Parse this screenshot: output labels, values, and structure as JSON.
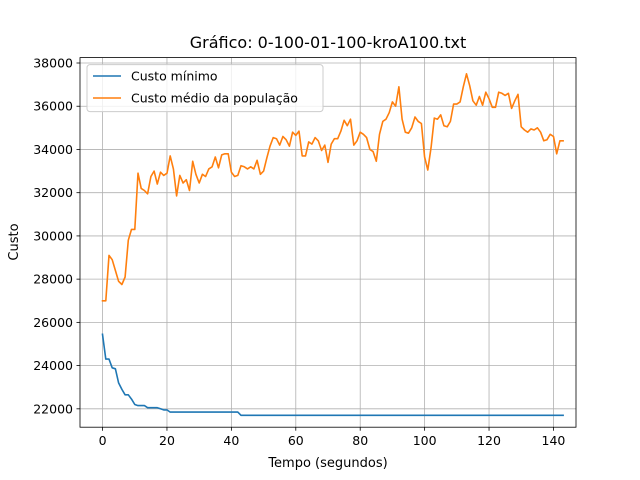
{
  "chart_data": {
    "type": "line",
    "title": "Gráfico: 0-100-01-100-kroA100.txt",
    "xlabel": "Tempo (segundos)",
    "ylabel": "Custo",
    "xlim": [
      -7,
      147
    ],
    "ylim": [
      21150,
      38250
    ],
    "xticks": [
      0,
      20,
      40,
      60,
      80,
      100,
      120,
      140
    ],
    "yticks": [
      22000,
      24000,
      26000,
      28000,
      30000,
      32000,
      34000,
      36000,
      38000
    ],
    "grid": true,
    "legend": "upper-left",
    "series": [
      {
        "name": "Custo mínimo",
        "color": "#1f77b4",
        "x": [
          0,
          1,
          2,
          3,
          4,
          5,
          6,
          7,
          8,
          9,
          10,
          11,
          12,
          13,
          14,
          15,
          16,
          17,
          18,
          19,
          20,
          21,
          22,
          30,
          40,
          42,
          43,
          60,
          80,
          100,
          120,
          143
        ],
        "y": [
          25450,
          24300,
          24300,
          23900,
          23850,
          23200,
          22900,
          22650,
          22650,
          22450,
          22200,
          22150,
          22150,
          22150,
          22050,
          22050,
          22050,
          22050,
          22000,
          21950,
          21950,
          21850,
          21850,
          21850,
          21850,
          21850,
          21700,
          21700,
          21700,
          21700,
          21700,
          21700
        ]
      },
      {
        "name": "Custo médio da população",
        "color": "#ff7f0e",
        "x": [
          0,
          1,
          2,
          3,
          4,
          5,
          6,
          7,
          8,
          9,
          10,
          11,
          12,
          13,
          14,
          15,
          16,
          17,
          18,
          19,
          20,
          21,
          22,
          23,
          24,
          25,
          26,
          27,
          28,
          29,
          30,
          31,
          32,
          33,
          34,
          35,
          36,
          37,
          38,
          39,
          40,
          41,
          42,
          43,
          44,
          45,
          46,
          47,
          48,
          49,
          50,
          51,
          52,
          53,
          54,
          55,
          56,
          57,
          58,
          59,
          60,
          61,
          62,
          63,
          64,
          65,
          66,
          67,
          68,
          69,
          70,
          71,
          72,
          73,
          74,
          75,
          76,
          77,
          78,
          79,
          80,
          81,
          82,
          83,
          84,
          85,
          86,
          87,
          88,
          89,
          90,
          91,
          92,
          93,
          94,
          95,
          96,
          97,
          98,
          99,
          100,
          101,
          102,
          103,
          104,
          105,
          106,
          107,
          108,
          109,
          110,
          111,
          112,
          113,
          114,
          115,
          116,
          117,
          118,
          119,
          120,
          121,
          122,
          123,
          124,
          125,
          126,
          127,
          128,
          129,
          130,
          131,
          132,
          133,
          134,
          135,
          136,
          137,
          138,
          139,
          140,
          141,
          142,
          143
        ],
        "y": [
          27000,
          27000,
          29100,
          28900,
          28400,
          27900,
          27750,
          28100,
          29800,
          30300,
          30300,
          32900,
          32200,
          32100,
          31950,
          32750,
          33000,
          32400,
          32950,
          32800,
          32900,
          33700,
          33100,
          31850,
          32800,
          32450,
          32600,
          32100,
          33450,
          32850,
          32450,
          32850,
          32750,
          33100,
          33200,
          33650,
          33150,
          33750,
          33800,
          33800,
          32950,
          32750,
          32800,
          33250,
          33200,
          33100,
          33200,
          33100,
          33500,
          32850,
          33000,
          33600,
          34150,
          34550,
          34500,
          34200,
          34600,
          34450,
          34150,
          34800,
          34650,
          34850,
          33700,
          33700,
          34350,
          34250,
          34550,
          34400,
          33950,
          34200,
          33400,
          34250,
          34500,
          34500,
          34850,
          35350,
          35100,
          35400,
          34200,
          34400,
          34800,
          34700,
          34550,
          34000,
          33900,
          33450,
          34700,
          35300,
          35400,
          35700,
          36200,
          36000,
          36900,
          35400,
          34800,
          34750,
          35000,
          35500,
          35300,
          35200,
          33650,
          33050,
          34100,
          35450,
          35400,
          35600,
          35100,
          35050,
          35300,
          36100,
          36100,
          36200,
          36900,
          37500,
          36950,
          36250,
          36050,
          36450,
          36050,
          36650,
          36350,
          35950,
          35950,
          36650,
          36600,
          36500,
          36600,
          35900,
          36250,
          36550,
          35050,
          34900,
          34800,
          34950,
          34900,
          35000,
          34800,
          34400,
          34450,
          34700,
          34600,
          33800,
          34400,
          34400
        ]
      }
    ]
  }
}
